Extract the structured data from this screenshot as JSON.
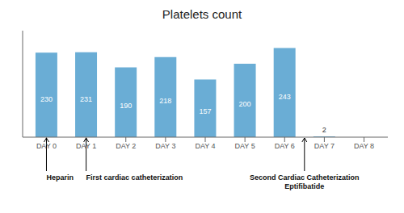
{
  "chart_data": {
    "type": "bar",
    "title": "Platelets count",
    "categories": [
      "DAY 0",
      "DAY 1",
      "DAY 2",
      "DAY 3",
      "DAY 4",
      "DAY 5",
      "DAY 6",
      "DAY 7",
      "DAY 8"
    ],
    "values": [
      230,
      231,
      190,
      218,
      157,
      200,
      243,
      2,
      0
    ],
    "value_labels": [
      "230",
      "231",
      "190",
      "218",
      "157",
      "200",
      "243",
      "2",
      null
    ],
    "data_labels": true,
    "color": "#6aadd5",
    "ylim": [
      0,
      290
    ],
    "yticks": [],
    "grid": false,
    "tick_labels": "x",
    "annotations": [
      {
        "x": 0,
        "text": "Heparin"
      },
      {
        "x": 1,
        "text": "First cardiac catheterization"
      },
      {
        "x": 6.5,
        "text": "Second Cardiac Catheterization\nEptifibatide"
      }
    ]
  }
}
